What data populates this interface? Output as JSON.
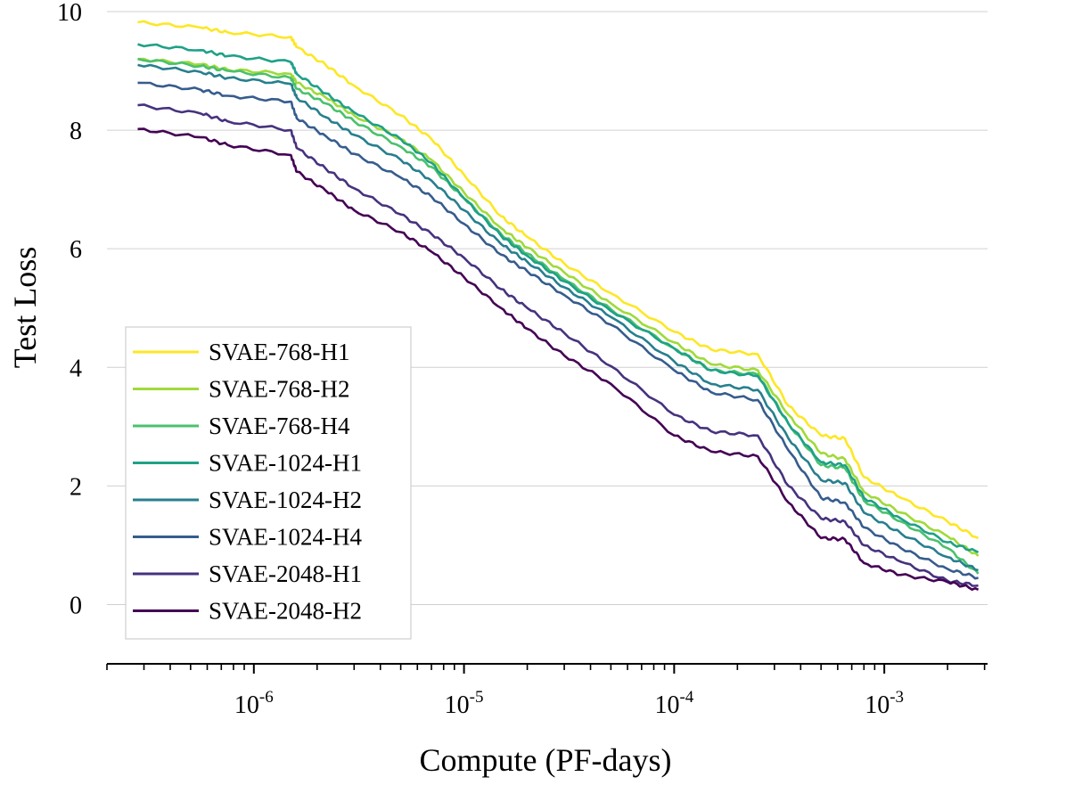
{
  "chart_data": {
    "type": "line",
    "xlabel": "Compute (PF-days)",
    "ylabel": "Test Loss",
    "xscale": "log",
    "xlim": [
      2e-07,
      0.0031
    ],
    "ylim": [
      -1,
      10
    ],
    "yticks": [
      0,
      2,
      4,
      6,
      8,
      10
    ],
    "xticks": [
      {
        "value": 1e-06,
        "base": "10",
        "exp": "-6"
      },
      {
        "value": 1e-05,
        "base": "10",
        "exp": "-5"
      },
      {
        "value": 0.0001,
        "base": "10",
        "exp": "-4"
      },
      {
        "value": 0.001,
        "base": "10",
        "exp": "-3"
      }
    ],
    "grid": "horizontal",
    "legend_position": "lower-left",
    "x": [
      2.8e-07,
      5.6e-07,
      7.5e-07,
      1.5e-06,
      1.6e-06,
      2.2e-06,
      3e-06,
      5e-06,
      7e-06,
      1e-05,
      1.5e-05,
      2e-05,
      3e-05,
      5e-05,
      0.0001,
      0.00015,
      0.00025,
      0.00035,
      0.0005,
      0.00065,
      0.0008,
      0.0012,
      0.002,
      0.0028
    ],
    "series": [
      {
        "name": "SVAE-768-H1",
        "color": "#fde725",
        "values": [
          9.82,
          9.73,
          9.65,
          9.57,
          9.4,
          9.1,
          8.75,
          8.25,
          7.85,
          7.25,
          6.55,
          6.2,
          5.75,
          5.25,
          4.6,
          4.3,
          4.22,
          3.35,
          2.85,
          2.8,
          2.15,
          1.8,
          1.4,
          1.12
        ]
      },
      {
        "name": "SVAE-768-H2",
        "color": "#a0da39",
        "values": [
          9.2,
          9.11,
          9.02,
          8.95,
          8.8,
          8.55,
          8.25,
          7.85,
          7.5,
          6.95,
          6.35,
          6.02,
          5.6,
          5.08,
          4.42,
          4.05,
          3.95,
          3.2,
          2.55,
          2.45,
          1.9,
          1.55,
          1.15,
          0.82
        ]
      },
      {
        "name": "SVAE-768-H4",
        "color": "#4ac16d",
        "values": [
          9.2,
          9.08,
          9.0,
          8.88,
          8.7,
          8.45,
          8.15,
          7.72,
          7.38,
          6.85,
          6.25,
          5.92,
          5.48,
          4.98,
          4.32,
          3.95,
          3.88,
          3.05,
          2.35,
          2.3,
          1.75,
          1.4,
          0.95,
          0.52
        ]
      },
      {
        "name": "SVAE-1024-H1",
        "color": "#1fa187",
        "values": [
          9.45,
          9.35,
          9.25,
          9.15,
          8.95,
          8.62,
          8.3,
          7.85,
          7.45,
          6.85,
          6.22,
          5.88,
          5.45,
          4.95,
          4.32,
          3.95,
          3.85,
          3.05,
          2.4,
          2.35,
          1.8,
          1.45,
          1.05,
          0.88
        ]
      },
      {
        "name": "SVAE-1024-H2",
        "color": "#277f8e",
        "values": [
          9.1,
          8.98,
          8.88,
          8.78,
          8.55,
          8.22,
          7.92,
          7.5,
          7.15,
          6.65,
          6.08,
          5.78,
          5.35,
          4.85,
          4.1,
          3.72,
          3.62,
          2.8,
          2.1,
          2.05,
          1.55,
          1.2,
          0.8,
          0.58
        ]
      },
      {
        "name": "SVAE-1024-H4",
        "color": "#365c8d",
        "values": [
          8.8,
          8.68,
          8.58,
          8.48,
          8.2,
          7.9,
          7.6,
          7.2,
          6.88,
          6.42,
          5.9,
          5.62,
          5.22,
          4.72,
          3.95,
          3.58,
          3.45,
          2.6,
          1.8,
          1.72,
          1.3,
          0.95,
          0.6,
          0.45
        ]
      },
      {
        "name": "SVAE-2048-H1",
        "color": "#46327e",
        "values": [
          8.42,
          8.28,
          8.15,
          8.0,
          7.7,
          7.35,
          7.02,
          6.58,
          6.25,
          5.85,
          5.32,
          5.0,
          4.58,
          4.02,
          3.2,
          2.92,
          2.85,
          2.0,
          1.45,
          1.4,
          1.0,
          0.72,
          0.4,
          0.32
        ]
      },
      {
        "name": "SVAE-2048-H2",
        "color": "#440154",
        "values": [
          8.02,
          7.88,
          7.75,
          7.58,
          7.3,
          6.98,
          6.65,
          6.28,
          5.95,
          5.52,
          5.0,
          4.65,
          4.2,
          3.72,
          2.85,
          2.58,
          2.5,
          1.72,
          1.12,
          1.1,
          0.7,
          0.5,
          0.38,
          0.25
        ]
      }
    ]
  }
}
